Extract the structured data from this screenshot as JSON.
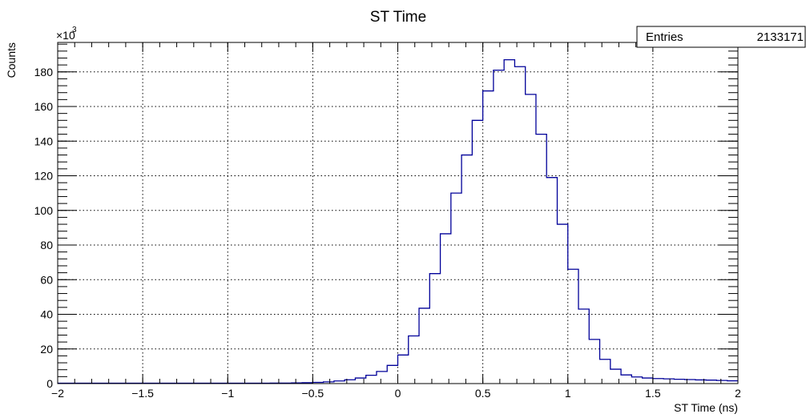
{
  "chart_data": {
    "type": "histogram",
    "title": "ST Time",
    "xlabel": "ST Time (ns)",
    "ylabel": "Counts",
    "y_multiplier_base": "×10",
    "y_multiplier_exp": "3",
    "xlim": [
      -2,
      2
    ],
    "ylim": [
      0,
      197
    ],
    "grid": true,
    "x_ticks": [
      -2,
      -1.5,
      -1,
      -0.5,
      0,
      0.5,
      1,
      1.5,
      2
    ],
    "x_tick_labels": [
      "−2",
      "−1.5",
      "−1",
      "−0.5",
      "0",
      "0.5",
      "1",
      "1.5",
      "2"
    ],
    "y_ticks": [
      0,
      20,
      40,
      60,
      80,
      100,
      120,
      140,
      160,
      180
    ],
    "y_tick_labels": [
      "0",
      "20",
      "40",
      "60",
      "80",
      "100",
      "120",
      "140",
      "160",
      "180"
    ],
    "bin_low": -2,
    "bin_width": 0.0625,
    "values": [
      0.2,
      0.2,
      0.2,
      0.2,
      0.2,
      0.2,
      0.2,
      0.2,
      0.2,
      0.2,
      0.2,
      0.2,
      0.2,
      0.2,
      0.2,
      0.2,
      0.2,
      0.2,
      0.2,
      0.2,
      0.3,
      0.3,
      0.4,
      0.5,
      0.7,
      1.0,
      1.5,
      2.2,
      3.2,
      4.8,
      7.0,
      10.5,
      16.5,
      27.5,
      43.5,
      63.5,
      86.5,
      110,
      132,
      152,
      169,
      181,
      187,
      183,
      167,
      144,
      119,
      92,
      66,
      43,
      25.5,
      14,
      8.3,
      5.0,
      3.8,
      3.2,
      2.9,
      2.7,
      2.5,
      2.3,
      2.1,
      2.0,
      1.8,
      1.6
    ],
    "line_color": "#000099",
    "stats": {
      "label": "Entries",
      "value": "2133171"
    }
  }
}
